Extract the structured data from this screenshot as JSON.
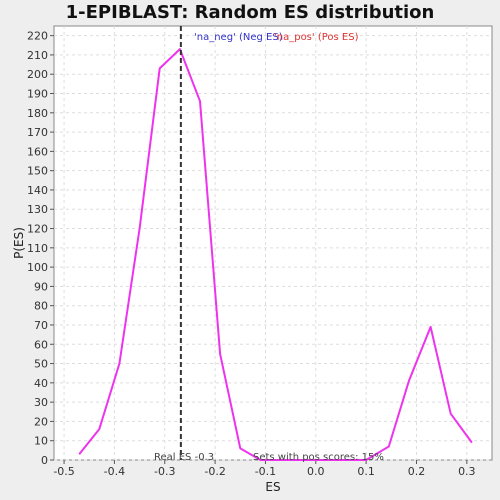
{
  "chart_data": {
    "type": "line",
    "title": "1-EPIBLAST: Random ES distribution",
    "xlabel": "ES",
    "ylabel": "P(ES)",
    "xlim": [
      -0.52,
      0.35
    ],
    "ylim": [
      0,
      225
    ],
    "x_ticks": [
      -0.5,
      -0.4,
      -0.3,
      -0.2,
      -0.1,
      0.0,
      0.1,
      0.2,
      0.3
    ],
    "x_tick_labels": [
      "-0.5",
      "-0.4",
      "-0.3",
      "-0.2",
      "-0.1",
      "0.0",
      "0.1",
      "0.2",
      "0.3"
    ],
    "y_ticks": [
      0,
      10,
      20,
      30,
      40,
      50,
      60,
      70,
      80,
      90,
      100,
      110,
      120,
      130,
      140,
      150,
      160,
      170,
      180,
      190,
      200,
      210,
      220
    ],
    "grid": true,
    "colors": {
      "series": "#ee33ee",
      "neg_legend": "#3333cc",
      "pos_legend": "#dd3333",
      "marker_line": "#333333",
      "grid": "#dddddd",
      "plot_bg": "#ffffff",
      "page_bg": "#eeeeee"
    },
    "series": [
      {
        "x": [
          -0.47,
          -0.43,
          -0.39,
          -0.35,
          -0.31,
          -0.27,
          -0.23,
          -0.19,
          -0.15,
          -0.11,
          -0.07,
          -0.03,
          0.01,
          0.05,
          0.1,
          0.145,
          0.185,
          0.228,
          0.268,
          0.31
        ],
        "y": [
          3,
          16,
          50,
          120,
          203,
          213,
          186,
          55,
          6,
          0,
          0,
          0,
          0,
          0,
          0,
          7,
          41,
          69,
          24,
          9
        ]
      }
    ],
    "legend": {
      "neg": "'na_neg' (Neg ES)",
      "pos": "'na_pos' (Pos ES)"
    },
    "real_es": {
      "value": -0.268,
      "label": "Real ES -0.3"
    },
    "annotation": "Sets with pos scores: 15%"
  }
}
